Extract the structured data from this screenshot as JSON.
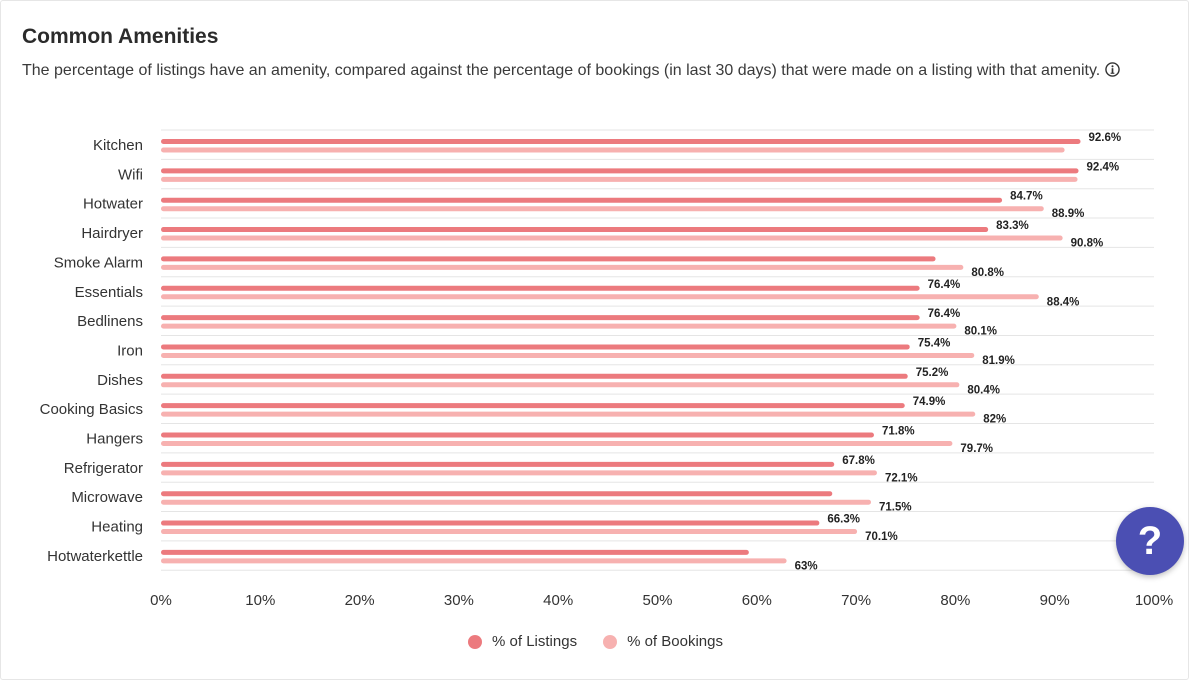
{
  "header": {
    "title": "Common Amenities",
    "subtitle": "The percentage of listings have an amenity, compared against the percentage of bookings (in last 30 days) that were made on a listing with that amenity."
  },
  "help_button": {
    "label": "?"
  },
  "colors": {
    "listings": "#ec7a7e",
    "bookings": "#f7b1b0",
    "grid": "#e5e5e5",
    "help": "#4b4fb3"
  },
  "chart_data": {
    "type": "bar",
    "orientation": "horizontal",
    "categories": [
      "Kitchen",
      "Wifi",
      "Hotwater",
      "Hairdryer",
      "Smoke Alarm",
      "Essentials",
      "Bedlinens",
      "Iron",
      "Dishes",
      "Cooking Basics",
      "Hangers",
      "Refrigerator",
      "Microwave",
      "Heating",
      "Hotwaterkettle"
    ],
    "series": [
      {
        "name": "% of Listings",
        "values": [
          92.6,
          92.4,
          84.7,
          83.3,
          78.0,
          76.4,
          76.4,
          75.4,
          75.2,
          74.9,
          71.8,
          67.8,
          67.6,
          66.3,
          59.2
        ],
        "labels": [
          "92.6%",
          "92.4%",
          "84.7%",
          "83.3%",
          "",
          "76.4%",
          "76.4%",
          "75.4%",
          "75.2%",
          "74.9%",
          "71.8%",
          "67.8%",
          "",
          "66.3%",
          ""
        ]
      },
      {
        "name": "% of Bookings",
        "values": [
          91.0,
          92.3,
          88.9,
          90.8,
          80.8,
          88.4,
          80.1,
          81.9,
          80.4,
          82.0,
          79.7,
          72.1,
          71.5,
          70.1,
          63.0
        ],
        "labels": [
          "",
          "",
          "88.9%",
          "90.8%",
          "80.8%",
          "88.4%",
          "80.1%",
          "81.9%",
          "80.4%",
          "82%",
          "79.7%",
          "72.1%",
          "71.5%",
          "70.1%",
          "63%"
        ]
      }
    ],
    "xticks": [
      "0%",
      "10%",
      "20%",
      "30%",
      "40%",
      "50%",
      "60%",
      "70%",
      "80%",
      "90%",
      "100%"
    ],
    "xlim": [
      0,
      100
    ],
    "grid": true,
    "legend": "bottom-center"
  }
}
